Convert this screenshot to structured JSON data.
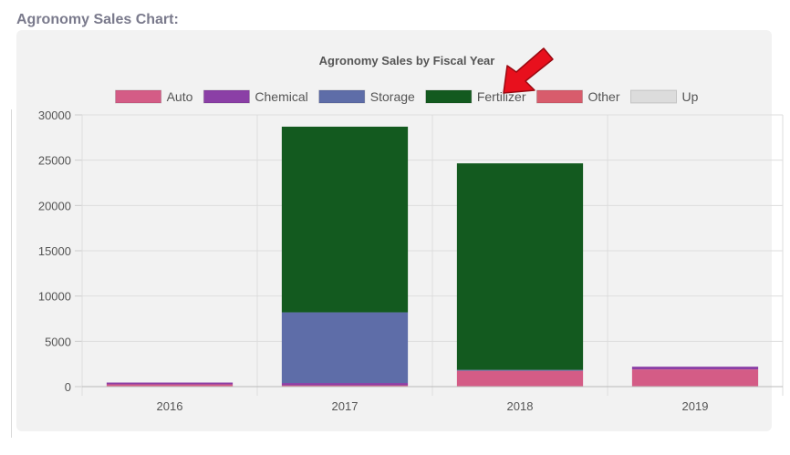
{
  "section_title": "Agronomy Sales Chart:",
  "chart_data": {
    "type": "bar",
    "stacked": true,
    "title": "Agronomy Sales by Fiscal Year",
    "categories": [
      "2016",
      "2017",
      "2018",
      "2019"
    ],
    "series": [
      {
        "name": "Auto",
        "color": "#d45c86",
        "values": [
          250,
          150,
          1750,
          1900
        ]
      },
      {
        "name": "Chemical",
        "color": "#8b3fa6",
        "values": [
          200,
          250,
          0,
          300
        ]
      },
      {
        "name": "Storage",
        "color": "#5e6da8",
        "values": [
          0,
          7800,
          100,
          0
        ]
      },
      {
        "name": "Fertilizer",
        "color": "#135a1f",
        "values": [
          0,
          20500,
          22800,
          0
        ]
      },
      {
        "name": "Other",
        "color": "#d85c6c",
        "values": [
          0,
          0,
          0,
          0
        ]
      },
      {
        "name": "Up",
        "color": "#dcdcdc",
        "values": [
          0,
          0,
          0,
          0
        ]
      }
    ],
    "y_ticks": [
      0,
      5000,
      10000,
      15000,
      20000,
      25000,
      30000
    ],
    "ylim": [
      0,
      30000
    ],
    "grid": true,
    "legend_position": "top"
  },
  "annotation": {
    "type": "arrow",
    "color": "#e8101d",
    "points_to": "Fertilizer"
  }
}
